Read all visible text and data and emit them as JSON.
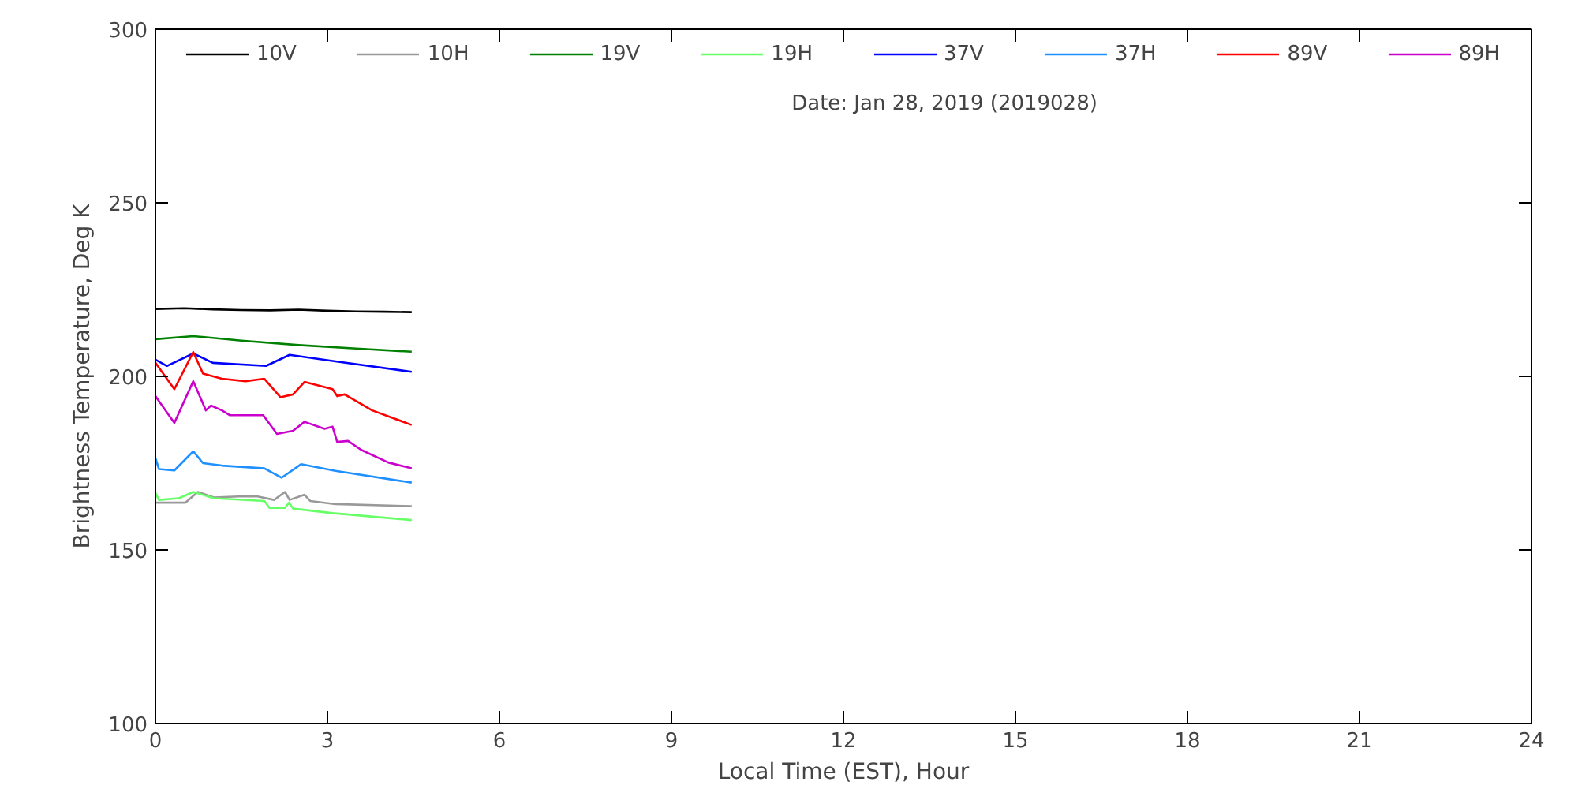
{
  "chart_data": {
    "type": "line",
    "xlabel": "Local Time (EST), Hour",
    "ylabel": "Brightness Temperature, Deg K",
    "annotations": [
      "Date: Jan 28, 2019 (2019028)"
    ],
    "xlim": [
      0,
      24
    ],
    "ylim": [
      100,
      300
    ],
    "xticks": [
      0,
      3,
      6,
      9,
      12,
      15,
      18,
      21,
      24
    ],
    "yticks": [
      100,
      150,
      200,
      250,
      300
    ],
    "grid": false,
    "legend": "top",
    "marker": "none",
    "line_style": "solid",
    "series": [
      {
        "name": "10V",
        "color": "#000000",
        "x": [
          0,
          0.5,
          1,
          1.5,
          2,
          2.5,
          3,
          3.5,
          4,
          4.47
        ],
        "values": [
          219.4,
          219.6,
          219.3,
          219.1,
          219,
          219.2,
          218.9,
          218.7,
          218.6,
          218.5
        ]
      },
      {
        "name": "10H",
        "color": "#999999",
        "x": [
          0,
          0.52,
          0.74,
          1.02,
          1.45,
          1.78,
          2.07,
          2.26,
          2.34,
          2.6,
          2.7,
          3.14,
          4.47
        ],
        "values": [
          163.6,
          163.6,
          166.7,
          165.1,
          165.4,
          165.4,
          164.4,
          166.7,
          164.4,
          165.9,
          164.1,
          163.2,
          162.6
        ]
      },
      {
        "name": "19V",
        "color": "#008000",
        "x": [
          0,
          0.66,
          1.5,
          2.5,
          3.5,
          4.47
        ],
        "values": [
          210.7,
          211.6,
          210.3,
          209,
          208,
          207.1
        ]
      },
      {
        "name": "19H",
        "color": "#66ff66",
        "x": [
          0,
          0.06,
          0.41,
          0.66,
          1.02,
          1.9,
          1.99,
          2.26,
          2.33,
          2.4,
          3.09,
          4.47
        ],
        "values": [
          166.4,
          164.4,
          164.9,
          166.7,
          164.9,
          164.1,
          162.1,
          162.1,
          163.6,
          161.9,
          160.6,
          158.6
        ]
      },
      {
        "name": "37V",
        "color": "#0000ff",
        "x": [
          0,
          0.2,
          0.66,
          1.0,
          1.93,
          2.34,
          3.14,
          4.47
        ],
        "values": [
          204.8,
          203,
          206.6,
          203.9,
          203,
          206.2,
          204.3,
          201.3
        ]
      },
      {
        "name": "37H",
        "color": "#1e90ff",
        "x": [
          0,
          0.06,
          0.33,
          0.66,
          0.83,
          1.16,
          1.9,
          2.2,
          2.54,
          3.14,
          4.47
        ],
        "values": [
          176.5,
          173.3,
          172.9,
          178.4,
          175,
          174.3,
          173.5,
          170.8,
          174.7,
          172.8,
          169.4
        ]
      },
      {
        "name": "89V",
        "color": "#ff0000",
        "x": [
          0,
          0.33,
          0.66,
          0.83,
          1.16,
          1.57,
          1.9,
          2.18,
          2.4,
          2.6,
          3.09,
          3.17,
          3.3,
          3.78,
          4.47
        ],
        "values": [
          203.9,
          196.3,
          207,
          200.8,
          199.3,
          198.6,
          199.3,
          194,
          194.8,
          198.4,
          196.3,
          194.3,
          194.8,
          190.2,
          186
        ]
      },
      {
        "name": "89H",
        "color": "#cc00cc",
        "x": [
          0,
          0.33,
          0.66,
          0.88,
          0.97,
          1.16,
          1.3,
          1.88,
          2.12,
          2.4,
          2.6,
          2.95,
          3.09,
          3.17,
          3.36,
          3.59,
          4.06,
          4.47
        ],
        "values": [
          194.3,
          186.6,
          198.6,
          190.2,
          191.6,
          190.2,
          188.8,
          188.8,
          183.4,
          184.3,
          186.9,
          184.9,
          185.5,
          181.1,
          181.4,
          178.8,
          175.2,
          173.5
        ]
      }
    ]
  }
}
